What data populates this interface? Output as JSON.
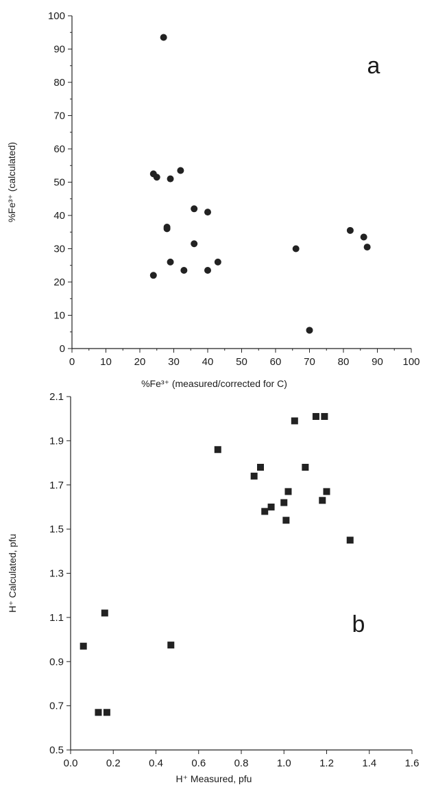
{
  "chart_data": [
    {
      "type": "scatter",
      "panel_label": "a",
      "xlabel": "%Fe³⁺ (measured/corrected for C)",
      "ylabel": "%Fe³⁺ (calculated)",
      "xlim": [
        0,
        100
      ],
      "ylim": [
        0,
        100
      ],
      "xticks": [
        0,
        10,
        20,
        30,
        40,
        50,
        60,
        70,
        80,
        90,
        100
      ],
      "yticks": [
        0,
        10,
        20,
        30,
        40,
        50,
        60,
        70,
        80,
        90,
        100
      ],
      "marker": "circle",
      "points": [
        {
          "x": 27,
          "y": 93.5
        },
        {
          "x": 24,
          "y": 52.5
        },
        {
          "x": 25,
          "y": 51.5
        },
        {
          "x": 29,
          "y": 51
        },
        {
          "x": 32,
          "y": 53.5
        },
        {
          "x": 36,
          "y": 42
        },
        {
          "x": 40,
          "y": 41
        },
        {
          "x": 28,
          "y": 36.5
        },
        {
          "x": 28,
          "y": 36
        },
        {
          "x": 36,
          "y": 31.5
        },
        {
          "x": 29,
          "y": 26
        },
        {
          "x": 24,
          "y": 22
        },
        {
          "x": 33,
          "y": 23.5
        },
        {
          "x": 40,
          "y": 23.5
        },
        {
          "x": 43,
          "y": 26
        },
        {
          "x": 66,
          "y": 30
        },
        {
          "x": 70,
          "y": 5.5
        },
        {
          "x": 82,
          "y": 35.5
        },
        {
          "x": 86,
          "y": 33.5
        },
        {
          "x": 87,
          "y": 30.5
        }
      ]
    },
    {
      "type": "scatter",
      "panel_label": "b",
      "xlabel": "H⁺ Measured, pfu",
      "ylabel": "H⁺ Calculated, pfu",
      "xlim": [
        0.0,
        1.6
      ],
      "ylim": [
        0.5,
        2.1
      ],
      "xticks": [
        "0.0",
        "0.2",
        "0.4",
        "0.6",
        "0.8",
        "1.0",
        "1.2",
        "1.4",
        "1.6"
      ],
      "yticks": [
        "0.5",
        "0.7",
        "0.9",
        "1.1",
        "1.3",
        "1.5",
        "1.7",
        "1.9",
        "2.1"
      ],
      "marker": "square",
      "points": [
        {
          "x": 0.06,
          "y": 0.97
        },
        {
          "x": 0.13,
          "y": 0.67
        },
        {
          "x": 0.16,
          "y": 1.12
        },
        {
          "x": 0.17,
          "y": 0.67
        },
        {
          "x": 0.47,
          "y": 0.975
        },
        {
          "x": 0.69,
          "y": 1.86
        },
        {
          "x": 0.86,
          "y": 1.74
        },
        {
          "x": 0.89,
          "y": 1.78
        },
        {
          "x": 0.91,
          "y": 1.58
        },
        {
          "x": 0.94,
          "y": 1.6
        },
        {
          "x": 1.0,
          "y": 1.62
        },
        {
          "x": 1.01,
          "y": 1.54
        },
        {
          "x": 1.02,
          "y": 1.67
        },
        {
          "x": 1.05,
          "y": 1.99
        },
        {
          "x": 1.1,
          "y": 1.78
        },
        {
          "x": 1.15,
          "y": 2.01
        },
        {
          "x": 1.18,
          "y": 1.63
        },
        {
          "x": 1.19,
          "y": 2.01
        },
        {
          "x": 1.2,
          "y": 1.67
        },
        {
          "x": 1.31,
          "y": 1.45
        }
      ]
    }
  ]
}
